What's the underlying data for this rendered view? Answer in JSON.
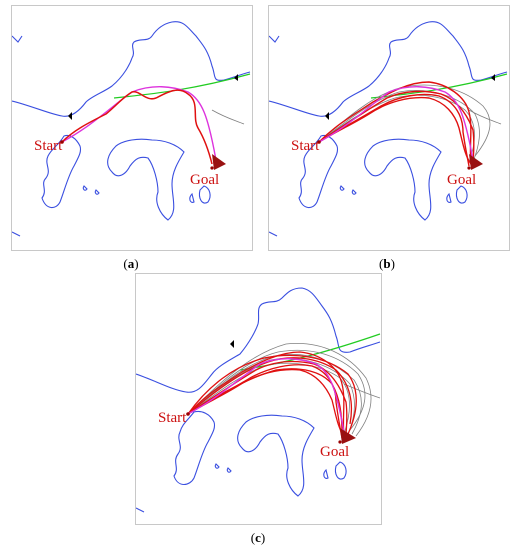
{
  "panels": [
    {
      "caption": "a",
      "start_label": "Start",
      "goal_label": "Goal"
    },
    {
      "caption": "b",
      "start_label": "Start",
      "goal_label": "Goal"
    },
    {
      "caption": "c",
      "start_label": "Start",
      "goal_label": "Goal"
    }
  ],
  "colors": {
    "coastline": "#3a4fe0",
    "reference_path": "#22cc22",
    "optimal_path": "#dd33dd",
    "sampled_paths": "#e01010",
    "other_paths": "#808080",
    "marker": "#991111"
  }
}
